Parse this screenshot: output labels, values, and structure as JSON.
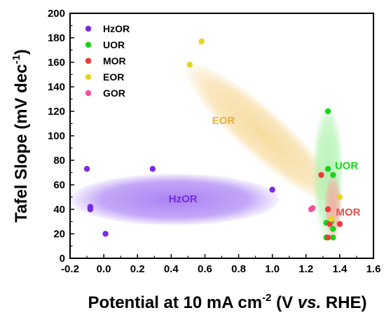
{
  "chart_data": {
    "type": "scatter",
    "xlabel_main": "Potential at 10 mA cm",
    "xlabel_sup": "-2",
    "xlabel_paren_open": " (V ",
    "xlabel_vs": "vs.",
    "xlabel_paren_close": " RHE)",
    "ylabel_main": "Tafel Slope (mV dec",
    "ylabel_sup": "-1",
    "ylabel_close": ")",
    "xlim": [
      -0.2,
      1.6
    ],
    "ylim": [
      0,
      200
    ],
    "x_ticks": [
      -0.2,
      0.0,
      0.2,
      0.4,
      0.6,
      0.8,
      1.0,
      1.2,
      1.4,
      1.6
    ],
    "x_tick_labels": [
      "-0.2",
      "0.0",
      "0.2",
      "0.4",
      "0.6",
      "0.8",
      "1.0",
      "1.2",
      "1.4",
      "1.6"
    ],
    "y_ticks": [
      0,
      20,
      40,
      60,
      80,
      100,
      120,
      140,
      160,
      180,
      200
    ],
    "y_tick_labels": [
      "0",
      "20",
      "40",
      "60",
      "80",
      "100",
      "120",
      "140",
      "160",
      "180",
      "200"
    ],
    "grid": false,
    "legend_position": "top-left",
    "series": [
      {
        "name": "HzOR",
        "color": "#7a2be0",
        "points": [
          [
            -0.1,
            73
          ],
          [
            -0.08,
            42
          ],
          [
            -0.08,
            40
          ],
          [
            0.01,
            20
          ],
          [
            0.29,
            73
          ],
          [
            1.0,
            56
          ]
        ]
      },
      {
        "name": "UOR",
        "color": "#19d419",
        "points": [
          [
            1.33,
            120
          ],
          [
            1.33,
            73
          ],
          [
            1.36,
            68
          ],
          [
            1.32,
            29
          ],
          [
            1.35,
            30
          ],
          [
            1.36,
            24
          ],
          [
            1.32,
            17
          ],
          [
            1.36,
            17
          ]
        ]
      },
      {
        "name": "MOR",
        "color": "#f03a3a",
        "points": [
          [
            1.29,
            68
          ],
          [
            1.33,
            40
          ],
          [
            1.34,
            28
          ],
          [
            1.4,
            28
          ],
          [
            1.33,
            17
          ]
        ]
      },
      {
        "name": "EOR",
        "color": "#e8d420",
        "points": [
          [
            0.58,
            177
          ],
          [
            0.51,
            158
          ],
          [
            1.4,
            50
          ],
          [
            1.35,
            32
          ]
        ]
      },
      {
        "name": "GOR",
        "color": "#f2559a",
        "points": [
          [
            1.24,
            41
          ],
          [
            1.23,
            40
          ]
        ]
      }
    ],
    "regions": [
      {
        "label": "HzOR",
        "color": "#9b6cf2",
        "label_color": "#7a2be0",
        "cx": 0.42,
        "cy": 48,
        "rx": 0.62,
        "ry": 21,
        "rot": 0,
        "lx": 0.47,
        "ly": 48
      },
      {
        "label": "EOR",
        "color": "#f5d690",
        "label_color": "#e9b13a",
        "cx": 0.94,
        "cy": 102,
        "rx": 0.6,
        "ry": 19,
        "rot": 1,
        "lx": 0.71,
        "ly": 112
      },
      {
        "label": "UOR",
        "color": "#a8f0a8",
        "label_color": "#19d419",
        "cx": 1.33,
        "cy": 70,
        "rx": 0.09,
        "ry": 55,
        "rot": 0,
        "lx": 1.44,
        "ly": 75
      },
      {
        "label": "MOR",
        "color": "#f7a7a0",
        "label_color": "#f04a4a",
        "cx": 1.36,
        "cy": 42,
        "rx": 0.05,
        "ry": 27,
        "rot": 0,
        "lx": 1.45,
        "ly": 37
      }
    ]
  }
}
